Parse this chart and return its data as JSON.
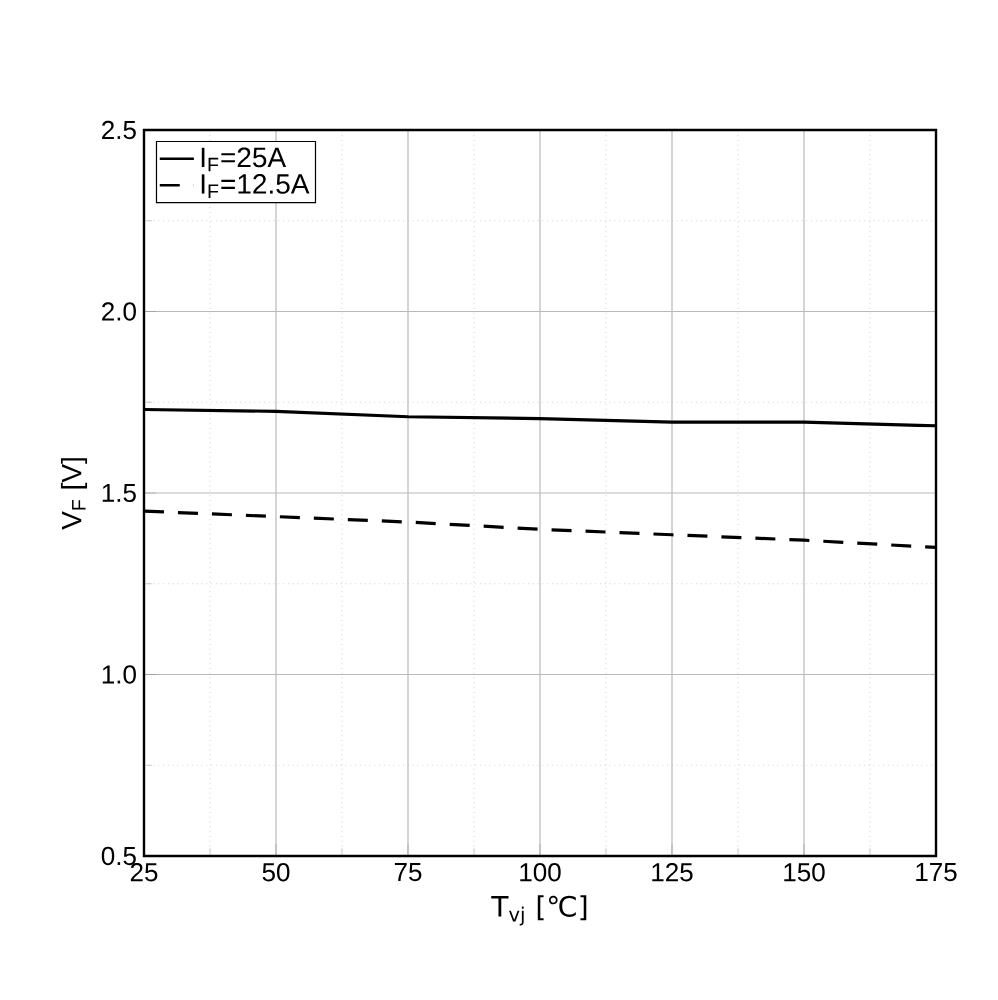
{
  "chart_data": {
    "type": "line",
    "xlabel": "T$_{vj}$ [℃]",
    "ylabel": "V$_{F}$ [V]",
    "x": [
      25,
      50,
      75,
      100,
      125,
      150,
      175
    ],
    "series": [
      {
        "name": "I$_{F}$=25A",
        "color": "#000000",
        "line_style": "solid",
        "values": [
          1.73,
          1.725,
          1.71,
          1.705,
          1.695,
          1.695,
          1.685
        ]
      },
      {
        "name": "I$_{F}$=12.5A",
        "color": "#000000",
        "line_style": "dashed",
        "values": [
          1.45,
          1.435,
          1.42,
          1.4,
          1.385,
          1.37,
          1.35
        ]
      }
    ],
    "xlim": [
      25,
      175
    ],
    "ylim": [
      0.5,
      2.5
    ],
    "xticks": [
      25,
      50,
      75,
      100,
      125,
      150,
      175
    ],
    "yticks": [
      {
        "value": 0.5,
        "label": "0.5"
      },
      {
        "value": 1.0,
        "label": "1.0"
      },
      {
        "value": 1.5,
        "label": "1.5"
      },
      {
        "value": 2.0,
        "label": "2.0"
      },
      {
        "value": 2.5,
        "label": "2.5"
      }
    ],
    "grid": true,
    "legend": "top left",
    "marker": "none"
  }
}
